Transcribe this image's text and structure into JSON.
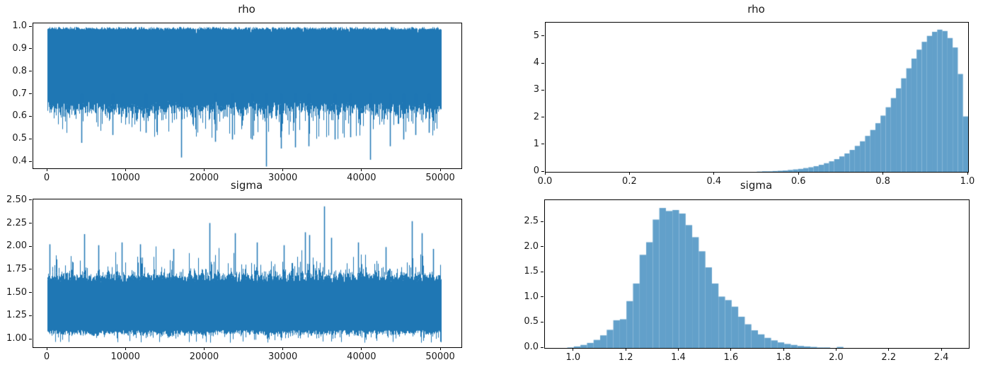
{
  "figure": {
    "background": "#ffffff",
    "colors": {
      "trace": "#1f77b4",
      "histogram": "#62a0ca",
      "axis": "#000000",
      "text": "#1a1a1a"
    }
  },
  "chart_data": [
    {
      "id": "rho-trace",
      "type": "line",
      "variant": "mcmc-trace",
      "title": "rho",
      "xlabel": "",
      "ylabel": "",
      "xlim": [
        -1800,
        52600
      ],
      "ylim": [
        0.372,
        1.016
      ],
      "x_range": [
        0,
        50000
      ],
      "grid": false,
      "legend": null,
      "xticks": {
        "values": [
          0,
          10000,
          20000,
          30000,
          40000,
          50000
        ],
        "labels": [
          "0",
          "10000",
          "20000",
          "30000",
          "40000",
          "50000"
        ]
      },
      "yticks": {
        "values": [
          1.0,
          0.9,
          0.8,
          0.7,
          0.6,
          0.5,
          0.4
        ],
        "labels": [
          "1.0",
          "0.9",
          "0.8",
          "0.7",
          "0.6",
          "0.5",
          "0.4"
        ]
      },
      "band": {
        "top": [
          0.988,
          1.0
        ],
        "core_bottom": [
          0.6,
          0.67
        ],
        "beard": {
          "prob": 0.6,
          "scale": 0.04,
          "min": 0.5
        },
        "seed": 42
      },
      "dips": [
        [
          4300,
          0.485
        ],
        [
          8300,
          0.52
        ],
        [
          12500,
          0.53
        ],
        [
          17000,
          0.42
        ],
        [
          21300,
          0.49
        ],
        [
          23500,
          0.5
        ],
        [
          26000,
          0.5
        ],
        [
          27800,
          0.38
        ],
        [
          29700,
          0.46
        ],
        [
          31500,
          0.465
        ],
        [
          33200,
          0.47
        ],
        [
          36500,
          0.5
        ],
        [
          38500,
          0.51
        ],
        [
          41000,
          0.41
        ],
        [
          43500,
          0.47
        ],
        [
          45200,
          0.5
        ],
        [
          46800,
          0.52
        ],
        [
          48500,
          0.53
        ]
      ]
    },
    {
      "id": "rho-hist",
      "type": "bar",
      "variant": "histogram",
      "title": "rho",
      "xlabel": "",
      "ylabel": "",
      "xlim": [
        0.0,
        1.0
      ],
      "ylim": [
        0,
        5.52
      ],
      "grid": false,
      "legend": null,
      "xticks": {
        "values": [
          0.0,
          0.2,
          0.4,
          0.6,
          0.8,
          1.0
        ],
        "labels": [
          "0.0",
          "0.2",
          "0.4",
          "0.6",
          "0.8",
          "1.0"
        ]
      },
      "yticks": {
        "values": [
          5,
          4,
          3,
          2,
          1,
          0
        ],
        "labels": [
          "5",
          "4",
          "3",
          "2",
          "1",
          "0"
        ]
      },
      "bins": {
        "start": 0.5,
        "width": 0.012195,
        "heights": [
          0.01,
          0.02,
          0.02,
          0.03,
          0.04,
          0.05,
          0.07,
          0.09,
          0.11,
          0.14,
          0.17,
          0.21,
          0.26,
          0.32,
          0.39,
          0.47,
          0.57,
          0.68,
          0.81,
          0.96,
          1.13,
          1.33,
          1.55,
          1.8,
          2.08,
          2.39,
          2.73,
          3.09,
          3.46,
          3.83,
          4.19,
          4.52,
          4.81,
          5.03,
          5.18,
          5.26,
          5.21,
          4.95,
          4.6,
          3.62,
          2.05
        ]
      }
    },
    {
      "id": "sigma-trace",
      "type": "line",
      "variant": "mcmc-trace",
      "title": "sigma",
      "xlabel": "",
      "ylabel": "",
      "xlim": [
        -1800,
        52600
      ],
      "ylim": [
        0.916,
        2.515
      ],
      "x_range": [
        0,
        50000
      ],
      "grid": false,
      "legend": null,
      "xticks": {
        "values": [
          0,
          10000,
          20000,
          30000,
          40000,
          50000
        ],
        "labels": [
          "0",
          "10000",
          "20000",
          "30000",
          "40000",
          "50000"
        ]
      },
      "yticks": {
        "values": [
          2.5,
          2.25,
          2.0,
          1.75,
          1.5,
          1.25,
          1.0
        ],
        "labels": [
          "2.50",
          "2.25",
          "2.00",
          "1.75",
          "1.50",
          "1.25",
          "1.00"
        ]
      },
      "band": {
        "top_core": [
          1.62,
          1.74
        ],
        "bottom": [
          1.05,
          1.1
        ],
        "crest": {
          "prob": 0.55,
          "scale": 0.07,
          "max": 2.02
        },
        "under": {
          "prob": 0.5,
          "scale": 0.03,
          "min": 0.965
        },
        "seed": 1337
      },
      "spikes": [
        [
          300,
          2.03
        ],
        [
          4700,
          2.14
        ],
        [
          6500,
          2.02
        ],
        [
          9400,
          2.05
        ],
        [
          11800,
          2.03
        ],
        [
          16000,
          1.98
        ],
        [
          20600,
          2.26
        ],
        [
          23800,
          2.15
        ],
        [
          26600,
          2.05
        ],
        [
          30000,
          2.02
        ],
        [
          32700,
          2.16
        ],
        [
          33300,
          2.13
        ],
        [
          35200,
          2.44
        ],
        [
          36100,
          2.1
        ],
        [
          39500,
          2.05
        ],
        [
          43000,
          2.0
        ],
        [
          46300,
          2.28
        ],
        [
          47600,
          2.15
        ],
        [
          49000,
          1.98
        ]
      ]
    },
    {
      "id": "sigma-hist",
      "type": "bar",
      "variant": "histogram",
      "title": "sigma",
      "xlabel": "",
      "ylabel": "",
      "xlim": [
        0.89,
        2.502
      ],
      "ylim": [
        0,
        2.936
      ],
      "grid": false,
      "legend": null,
      "xticks": {
        "values": [
          1.0,
          1.2,
          1.4,
          1.6,
          1.8,
          2.0,
          2.2,
          2.4
        ],
        "labels": [
          "1.0",
          "1.2",
          "1.4",
          "1.6",
          "1.8",
          "2.0",
          "2.2",
          "2.4"
        ]
      },
      "yticks": {
        "values": [
          2.5,
          2.0,
          1.5,
          1.0,
          0.5,
          0.0
        ],
        "labels": [
          "2.5",
          "2.0",
          "1.5",
          "1.0",
          "0.5",
          "0.0"
        ]
      },
      "bins": {
        "start": 0.975,
        "width": 0.025,
        "heights": [
          0.01,
          0.03,
          0.06,
          0.1,
          0.16,
          0.25,
          0.36,
          0.55,
          0.57,
          0.93,
          1.28,
          1.85,
          2.1,
          2.55,
          2.78,
          2.72,
          2.74,
          2.67,
          2.44,
          2.2,
          1.92,
          1.6,
          1.28,
          1.02,
          0.95,
          0.82,
          0.62,
          0.47,
          0.35,
          0.27,
          0.2,
          0.15,
          0.11,
          0.08,
          0.06,
          0.04,
          0.03,
          0.02,
          0.01,
          0.01,
          0.0,
          0.02
        ]
      }
    }
  ]
}
